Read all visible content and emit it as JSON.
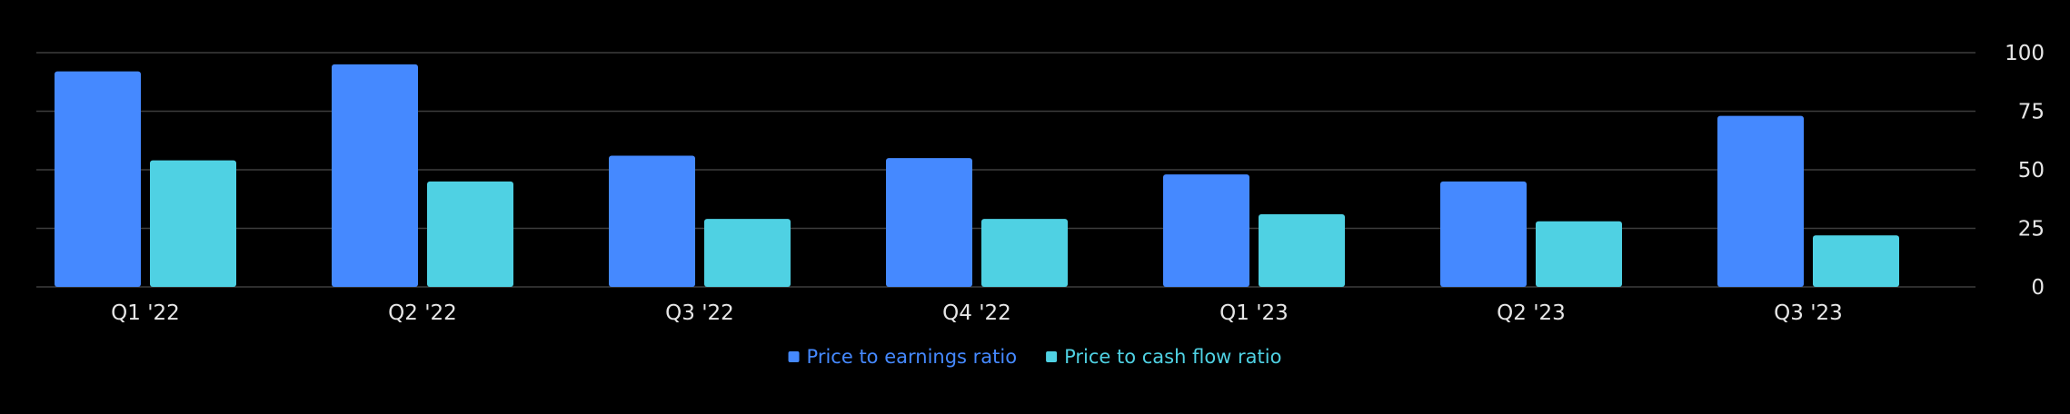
{
  "chart_data": {
    "type": "bar",
    "categories": [
      "Q1 '22",
      "Q2 '22",
      "Q3 '22",
      "Q4 '22",
      "Q1 '23",
      "Q2 '23",
      "Q3 '23"
    ],
    "series": [
      {
        "name": "Price to earnings ratio",
        "color": "#4589ff",
        "values": [
          92,
          95,
          56,
          55,
          48,
          45,
          73
        ]
      },
      {
        "name": "Price to cash flow ratio",
        "color": "#4fd1e3",
        "values": [
          54,
          45,
          29,
          29,
          31,
          28,
          22
        ]
      }
    ],
    "y_ticks": [
      "0",
      "25",
      "50",
      "75",
      "100"
    ],
    "ylim": [
      0,
      100
    ],
    "y_axis_position": "right",
    "grid": true,
    "legend_position": "bottom-center",
    "colors": {
      "background": "#000000",
      "gridline": "#3d3d3d",
      "axis_text": "#e6e6e6"
    }
  }
}
